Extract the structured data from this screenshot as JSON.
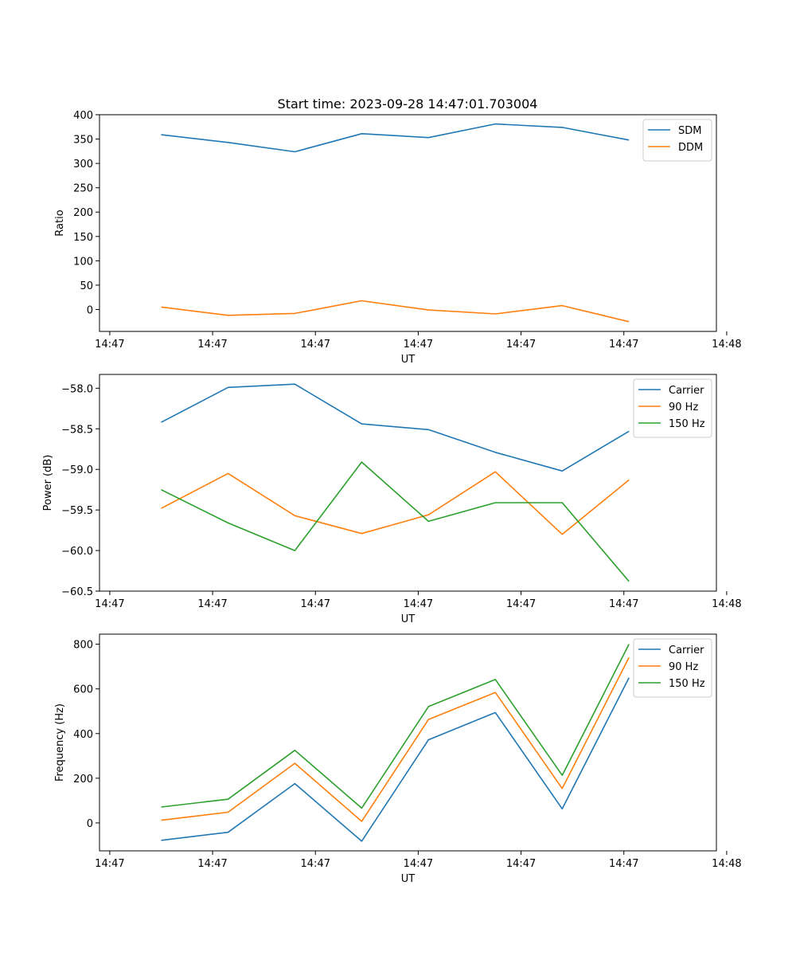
{
  "figure_title": "Start time: 2023-09-28 14:47:01.703004",
  "colors": {
    "blue": "#1f77b4",
    "orange": "#ff7f0e",
    "green": "#2ca02c"
  },
  "chart_data": [
    {
      "type": "line",
      "title": "Start time: 2023-09-28 14:47:01.703004",
      "xlabel": "UT",
      "ylabel": "Ratio",
      "x": [
        0.5,
        1.15,
        1.8,
        2.45,
        3.1,
        3.75,
        4.4,
        5.05
      ],
      "xlim": [
        -0.1,
        5.9
      ],
      "x_ticks": [
        0,
        1,
        2,
        3,
        4,
        5,
        6
      ],
      "x_tick_labels": [
        "14:47",
        "14:47",
        "14:47",
        "14:47",
        "14:47",
        "14:47",
        "14:48"
      ],
      "ylim": [
        -45,
        400
      ],
      "y_ticks": [
        0,
        50,
        100,
        150,
        200,
        250,
        300,
        350,
        400
      ],
      "y_tick_labels": [
        "0",
        "50",
        "100",
        "150",
        "200",
        "250",
        "300",
        "350",
        "400"
      ],
      "legend": "top-right",
      "series": [
        {
          "name": "SDM",
          "color": "#1f77b4",
          "values": [
            359,
            343,
            324,
            361,
            353,
            381,
            374,
            348
          ]
        },
        {
          "name": "DDM",
          "color": "#ff7f0e",
          "values": [
            5,
            -12,
            -8,
            18,
            -1,
            -9,
            8,
            -25
          ]
        }
      ]
    },
    {
      "type": "line",
      "title": "",
      "xlabel": "UT",
      "ylabel": "Power (dB)",
      "x": [
        0.5,
        1.15,
        1.8,
        2.45,
        3.1,
        3.75,
        4.4,
        5.05
      ],
      "xlim": [
        -0.1,
        5.9
      ],
      "x_ticks": [
        0,
        1,
        2,
        3,
        4,
        5,
        6
      ],
      "x_tick_labels": [
        "14:47",
        "14:47",
        "14:47",
        "14:47",
        "14:47",
        "14:47",
        "14:48"
      ],
      "ylim": [
        -60.5,
        -57.83
      ],
      "y_ticks": [
        -60.5,
        -60.0,
        -59.5,
        -59.0,
        -58.5,
        -58.0
      ],
      "y_tick_labels": [
        "−60.5",
        "−60.0",
        "−59.5",
        "−59.0",
        "−58.5",
        "−58.0"
      ],
      "legend": "top-right",
      "series": [
        {
          "name": "Carrier",
          "color": "#1f77b4",
          "values": [
            -58.42,
            -57.99,
            -57.95,
            -58.44,
            -58.51,
            -58.79,
            -59.02,
            -58.53
          ]
        },
        {
          "name": "90 Hz",
          "color": "#ff7f0e",
          "values": [
            -59.48,
            -59.05,
            -59.57,
            -59.79,
            -59.56,
            -59.03,
            -59.8,
            -59.13
          ]
        },
        {
          "name": "150 Hz",
          "color": "#2ca02c",
          "values": [
            -59.25,
            -59.66,
            -60.0,
            -58.91,
            -59.64,
            -59.41,
            -59.41,
            -60.38
          ]
        }
      ]
    },
    {
      "type": "line",
      "title": "",
      "xlabel": "UT",
      "ylabel": "Frequency (Hz)",
      "x": [
        0.5,
        1.15,
        1.8,
        2.45,
        3.1,
        3.75,
        4.4,
        5.05
      ],
      "xlim": [
        -0.1,
        5.9
      ],
      "x_ticks": [
        0,
        1,
        2,
        3,
        4,
        5,
        6
      ],
      "x_tick_labels": [
        "14:47",
        "14:47",
        "14:47",
        "14:47",
        "14:47",
        "14:47",
        "14:48"
      ],
      "ylim": [
        -125,
        845
      ],
      "y_ticks": [
        0,
        200,
        400,
        600,
        800
      ],
      "y_tick_labels": [
        "0",
        "200",
        "400",
        "600",
        "800"
      ],
      "legend": "top-right",
      "series": [
        {
          "name": "Carrier",
          "color": "#1f77b4",
          "values": [
            -78,
            -42,
            176,
            -82,
            372,
            494,
            63,
            650
          ]
        },
        {
          "name": "90 Hz",
          "color": "#ff7f0e",
          "values": [
            12,
            48,
            267,
            7,
            463,
            584,
            154,
            741
          ]
        },
        {
          "name": "150 Hz",
          "color": "#2ca02c",
          "values": [
            71,
            106,
            325,
            66,
            521,
            642,
            213,
            800
          ]
        }
      ]
    }
  ]
}
